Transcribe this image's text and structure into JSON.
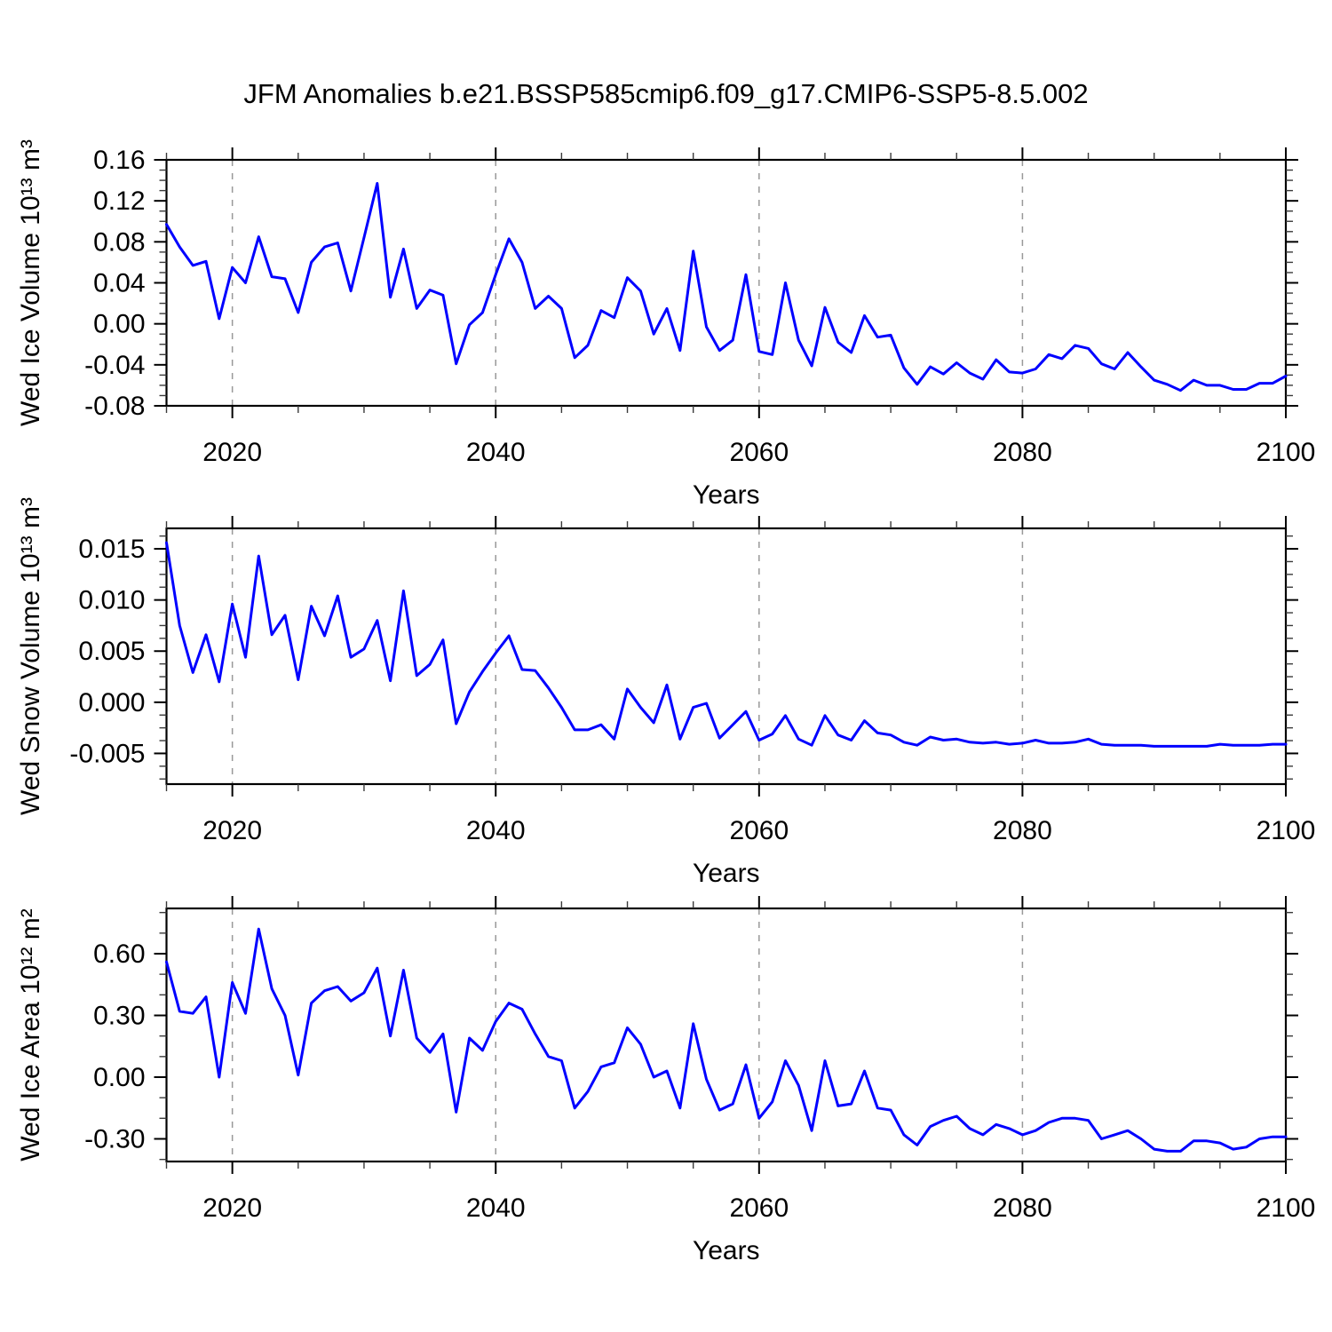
{
  "title": "JFM Anomalies b.e21.BSSP585cmip6.f09_g17.CMIP6-SSP5-8.5.002",
  "line_color": "#0000ff",
  "gridline_color": "#999999",
  "chart_data": [
    {
      "type": "line",
      "ylabel": "Wed Ice Volume 10¹³ m³",
      "xlabel": "Years",
      "x_start": 2015,
      "x_step": 1,
      "xlim": [
        2015,
        2100
      ],
      "ylim": [
        -0.08,
        0.16
      ],
      "xticks_major": [
        2020,
        2040,
        2060,
        2080,
        2100
      ],
      "xticks_minor_step": 5,
      "yticks_major": [
        0.16,
        0.12,
        0.08,
        0.04,
        0.0,
        -0.04,
        -0.08
      ],
      "ytick_labels": [
        "0.16",
        "0.12",
        "0.08",
        "0.04",
        "0.00",
        "-0.04",
        "-0.08"
      ],
      "yticks_minor_step": 0.01,
      "gridlines_x": [
        2020,
        2040,
        2060,
        2080
      ],
      "grid": true,
      "legend": "none",
      "values": [
        0.097,
        0.075,
        0.057,
        0.061,
        0.005,
        0.055,
        0.04,
        0.085,
        0.046,
        0.044,
        0.011,
        0.06,
        0.075,
        0.079,
        0.032,
        0.084,
        0.137,
        0.026,
        0.073,
        0.015,
        0.033,
        0.028,
        -0.039,
        -0.001,
        0.011,
        0.048,
        0.083,
        0.06,
        0.015,
        0.027,
        0.015,
        -0.033,
        -0.021,
        0.013,
        0.006,
        0.045,
        0.032,
        -0.01,
        0.015,
        -0.026,
        0.071,
        -0.003,
        -0.026,
        -0.016,
        0.048,
        -0.027,
        -0.03,
        0.04,
        -0.016,
        -0.041,
        0.016,
        -0.018,
        -0.028,
        0.008,
        -0.013,
        -0.011,
        -0.043,
        -0.059,
        -0.042,
        -0.049,
        -0.038,
        -0.048,
        -0.054,
        -0.035,
        -0.047,
        -0.048,
        -0.044,
        -0.03,
        -0.034,
        -0.021,
        -0.024,
        -0.039,
        -0.044,
        -0.028,
        -0.042,
        -0.055,
        -0.059,
        -0.065,
        -0.055,
        -0.06,
        -0.06,
        -0.064,
        -0.064,
        -0.058,
        -0.058,
        -0.051
      ]
    },
    {
      "type": "line",
      "ylabel": "Wed Snow Volume 10¹³ m³",
      "xlabel": "Years",
      "x_start": 2015,
      "x_step": 1,
      "xlim": [
        2015,
        2100
      ],
      "ylim": [
        -0.008,
        0.017
      ],
      "xticks_major": [
        2020,
        2040,
        2060,
        2080,
        2100
      ],
      "xticks_minor_step": 5,
      "yticks_major": [
        0.015,
        0.01,
        0.005,
        0.0,
        -0.005
      ],
      "ytick_labels": [
        "0.015",
        "0.010",
        "0.005",
        "0.000",
        "-0.005"
      ],
      "yticks_minor_step": 0.00125,
      "gridlines_x": [
        2020,
        2040,
        2060,
        2080
      ],
      "grid": true,
      "legend": "none",
      "values": [
        0.0156,
        0.0075,
        0.0029,
        0.0066,
        0.002,
        0.0096,
        0.0044,
        0.0143,
        0.0066,
        0.0085,
        0.0022,
        0.0094,
        0.0065,
        0.0104,
        0.0044,
        0.0052,
        0.008,
        0.0021,
        0.0109,
        0.0026,
        0.0037,
        0.0061,
        -0.0021,
        0.001,
        0.003,
        0.0048,
        0.0065,
        0.0032,
        0.0031,
        0.0014,
        -0.0005,
        -0.0027,
        -0.0027,
        -0.0022,
        -0.0036,
        0.0013,
        -0.0005,
        -0.002,
        0.0017,
        -0.0036,
        -0.0005,
        -0.0001,
        -0.0035,
        -0.0022,
        -0.0009,
        -0.0037,
        -0.0031,
        -0.0013,
        -0.0036,
        -0.0042,
        -0.0013,
        -0.0032,
        -0.0037,
        -0.0018,
        -0.003,
        -0.0032,
        -0.0039,
        -0.0042,
        -0.0034,
        -0.0037,
        -0.0036,
        -0.0039,
        -0.004,
        -0.0039,
        -0.0041,
        -0.004,
        -0.0037,
        -0.004,
        -0.004,
        -0.0039,
        -0.0036,
        -0.0041,
        -0.0042,
        -0.0042,
        -0.0042,
        -0.0043,
        -0.0043,
        -0.0043,
        -0.0043,
        -0.0043,
        -0.0041,
        -0.0042,
        -0.0042,
        -0.0042,
        -0.0041,
        -0.0041
      ]
    },
    {
      "type": "line",
      "ylabel": "Wed Ice Area 10¹² m²",
      "xlabel": "Years",
      "x_start": 2015,
      "x_step": 1,
      "xlim": [
        2015,
        2100
      ],
      "ylim": [
        -0.41,
        0.82
      ],
      "xticks_major": [
        2020,
        2040,
        2060,
        2080,
        2100
      ],
      "xticks_minor_step": 5,
      "yticks_major": [
        0.6,
        0.3,
        0.0,
        -0.3
      ],
      "ytick_labels": [
        "0.60",
        "0.30",
        "0.00",
        "-0.30"
      ],
      "yticks_minor_step": 0.1,
      "gridlines_x": [
        2020,
        2040,
        2060,
        2080
      ],
      "grid": true,
      "legend": "none",
      "values": [
        0.56,
        0.32,
        0.31,
        0.39,
        0.0,
        0.46,
        0.31,
        0.72,
        0.43,
        0.3,
        0.01,
        0.36,
        0.42,
        0.44,
        0.37,
        0.41,
        0.53,
        0.2,
        0.52,
        0.19,
        0.12,
        0.21,
        -0.17,
        0.19,
        0.13,
        0.27,
        0.36,
        0.33,
        0.21,
        0.1,
        0.08,
        -0.15,
        -0.07,
        0.05,
        0.07,
        0.24,
        0.16,
        0.0,
        0.03,
        -0.15,
        0.26,
        -0.01,
        -0.16,
        -0.13,
        0.06,
        -0.2,
        -0.12,
        0.08,
        -0.04,
        -0.26,
        0.08,
        -0.14,
        -0.13,
        0.03,
        -0.15,
        -0.16,
        -0.28,
        -0.33,
        -0.24,
        -0.21,
        -0.19,
        -0.25,
        -0.28,
        -0.23,
        -0.25,
        -0.28,
        -0.26,
        -0.22,
        -0.2,
        -0.2,
        -0.21,
        -0.3,
        -0.28,
        -0.26,
        -0.3,
        -0.35,
        -0.36,
        -0.36,
        -0.31,
        -0.31,
        -0.32,
        -0.35,
        -0.34,
        -0.3,
        -0.29,
        -0.29
      ]
    }
  ]
}
